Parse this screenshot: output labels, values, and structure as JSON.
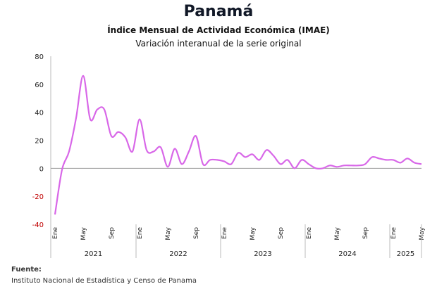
{
  "header": {
    "title": "Panamá",
    "subtitle": "Índice Mensual de Actividad Económica (IMAE)",
    "subtitle2": "Variación interanual de la serie original"
  },
  "footer": {
    "source_label": "Fuente:",
    "source_text": "Instituto Nacional de Estadística y Censo de Panama"
  },
  "colors": {
    "line": "#d867e8",
    "zero_line": "#999999",
    "negative_tick": "#c00000"
  },
  "chart_data": {
    "type": "line",
    "title": "Panamá",
    "subtitle": "Índice Mensual de Actividad Económica (IMAE)",
    "xlabel": "",
    "ylabel": "",
    "ylim": [
      -40,
      80
    ],
    "yticks": [
      -40,
      -20,
      0,
      20,
      40,
      60,
      80
    ],
    "grid": false,
    "legend": "none",
    "x_month_ticks": [
      "Ene",
      "May",
      "Sep"
    ],
    "years": [
      "2021",
      "2022",
      "2023",
      "2024",
      "2025"
    ],
    "x": [
      "2021-01",
      "2021-02",
      "2021-03",
      "2021-04",
      "2021-05",
      "2021-06",
      "2021-07",
      "2021-08",
      "2021-09",
      "2021-10",
      "2021-11",
      "2021-12",
      "2022-01",
      "2022-02",
      "2022-03",
      "2022-04",
      "2022-05",
      "2022-06",
      "2022-07",
      "2022-08",
      "2022-09",
      "2022-10",
      "2022-11",
      "2022-12",
      "2023-01",
      "2023-02",
      "2023-03",
      "2023-04",
      "2023-05",
      "2023-06",
      "2023-07",
      "2023-08",
      "2023-09",
      "2023-10",
      "2023-11",
      "2023-12",
      "2024-01",
      "2024-02",
      "2024-03",
      "2024-04",
      "2024-05",
      "2024-06",
      "2024-07",
      "2024-08",
      "2024-09",
      "2024-10",
      "2024-11",
      "2024-12",
      "2025-01",
      "2025-02",
      "2025-03",
      "2025-04",
      "2025-05"
    ],
    "series": [
      {
        "values": [
          -33,
          -1,
          12,
          36,
          66,
          35,
          42,
          42,
          23,
          26,
          22,
          12,
          35,
          13,
          12,
          15,
          1,
          14,
          3,
          12,
          23,
          3,
          6,
          6,
          5,
          3,
          11,
          8,
          10,
          6,
          13,
          9,
          3,
          6,
          0,
          6,
          3,
          0,
          0,
          2,
          1,
          2,
          2,
          2,
          3,
          8,
          7,
          6,
          6,
          4,
          7,
          4,
          3
        ]
      }
    ]
  }
}
